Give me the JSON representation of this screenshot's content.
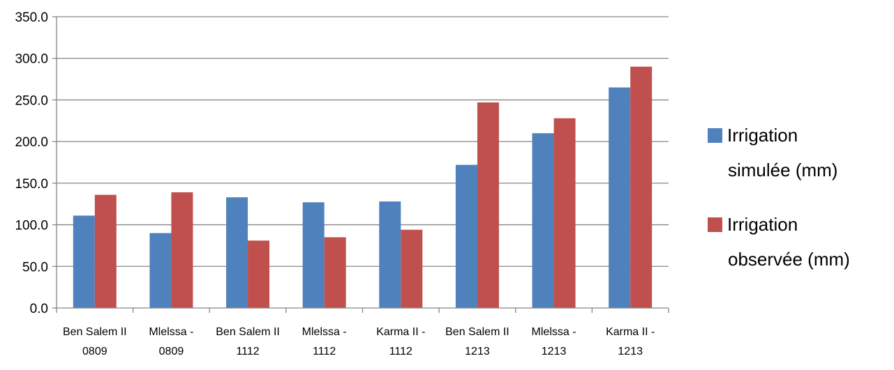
{
  "chart_data": {
    "type": "bar",
    "categories": [
      [
        "Ben Salem II",
        "0809"
      ],
      [
        "Mlelssa -",
        "0809"
      ],
      [
        "Ben Salem II",
        "1112"
      ],
      [
        "Mlelssa -",
        "1112"
      ],
      [
        "Karma II -",
        "1112"
      ],
      [
        "Ben Salem II",
        "1213"
      ],
      [
        "Mlelssa -",
        "1213"
      ],
      [
        "Karma II -",
        "1213"
      ]
    ],
    "series": [
      {
        "name": "Irrigation simulée (mm)",
        "legend_lines": [
          "Irrigation",
          "simulée (mm)"
        ],
        "color": "#4F81BD",
        "values": [
          111,
          90,
          133,
          127,
          128,
          172,
          210,
          265
        ]
      },
      {
        "name": "Irrigation observée (mm)",
        "legend_lines": [
          "Irrigation",
          "observée (mm)"
        ],
        "color": "#C0504D",
        "values": [
          136,
          139,
          81,
          85,
          94,
          247,
          228,
          290
        ]
      }
    ],
    "yticks": [
      "0.0",
      "50.0",
      "100.0",
      "150.0",
      "200.0",
      "250.0",
      "300.0",
      "350.0"
    ],
    "ylim": [
      0,
      350
    ],
    "grid": true,
    "legend_position": "right"
  }
}
